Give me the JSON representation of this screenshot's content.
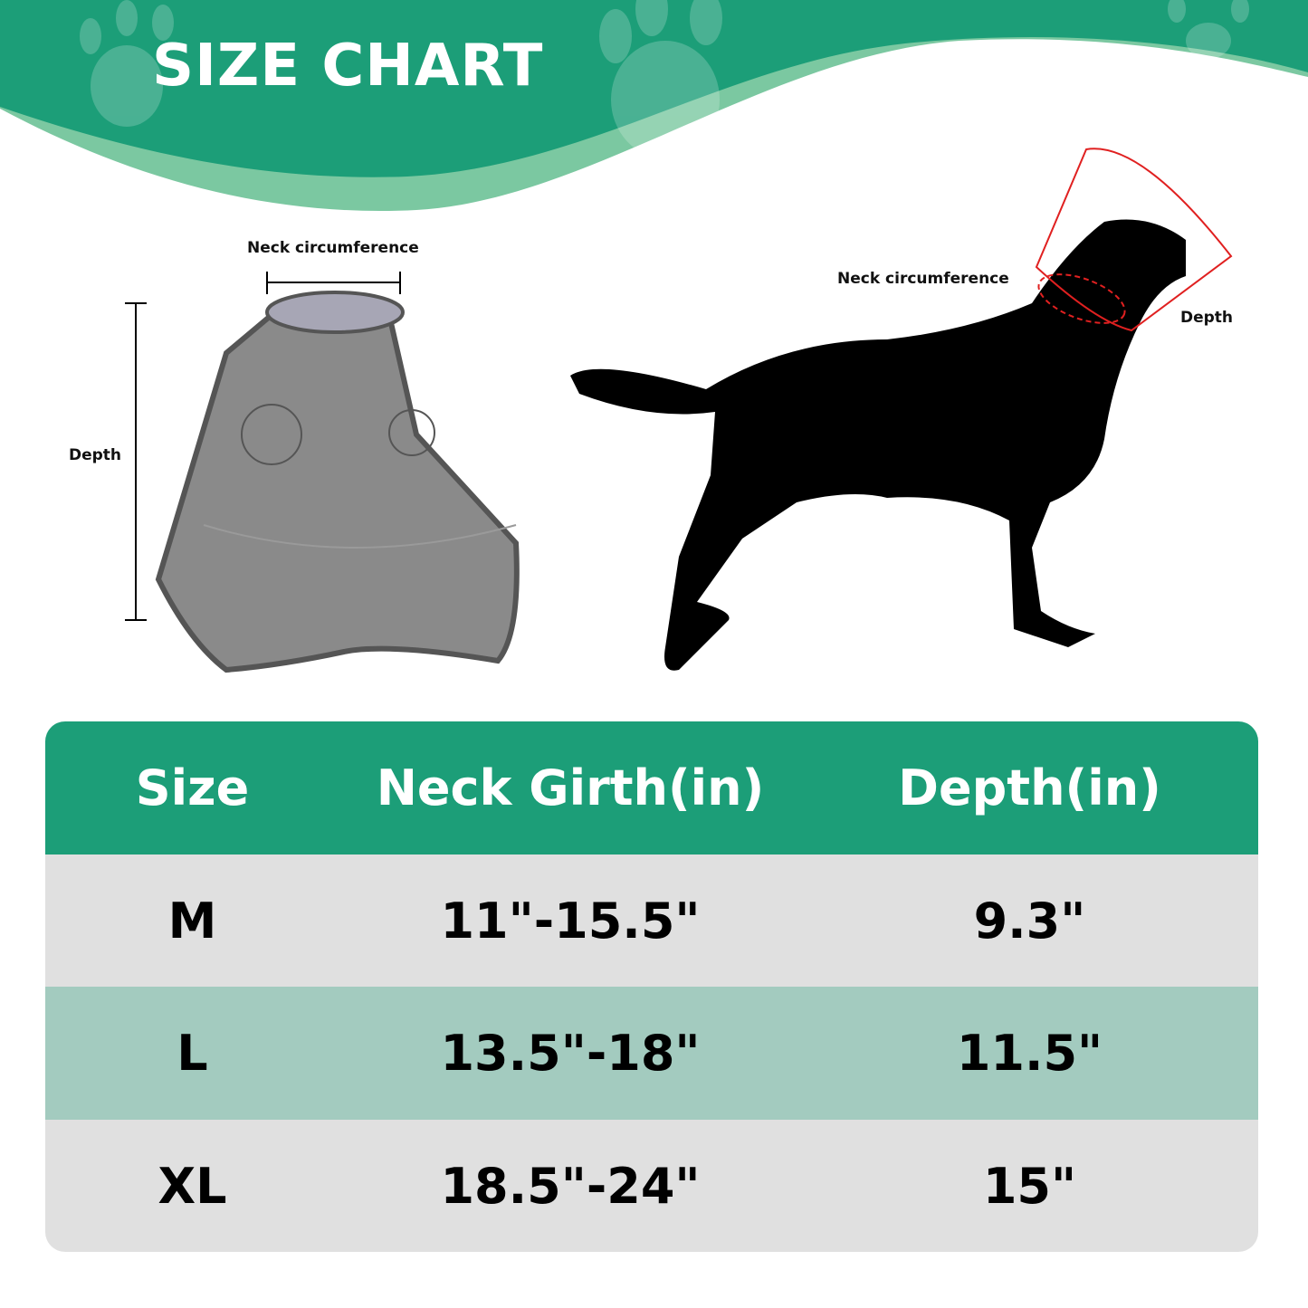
{
  "title": "SIZE CHART",
  "colors": {
    "brand_green": "#1c9e78",
    "light_green": "#7bc8a1",
    "row_gray": "#e0e0e0",
    "row_green": "#a3cbbf",
    "cone_outline": "#e02020"
  },
  "cone_labels": {
    "neck": "Neck circumference",
    "depth": "Depth"
  },
  "dog_labels": {
    "neck": "Neck circumference",
    "depth": "Depth"
  },
  "table": {
    "headers": [
      "Size",
      "Neck Girth(in)",
      "Depth(in)"
    ],
    "rows": [
      [
        "M",
        "11\"-15.5\"",
        "9.3\""
      ],
      [
        "L",
        "13.5\"-18\"",
        "11.5\""
      ],
      [
        "XL",
        "18.5\"-24\"",
        "15\""
      ]
    ]
  }
}
